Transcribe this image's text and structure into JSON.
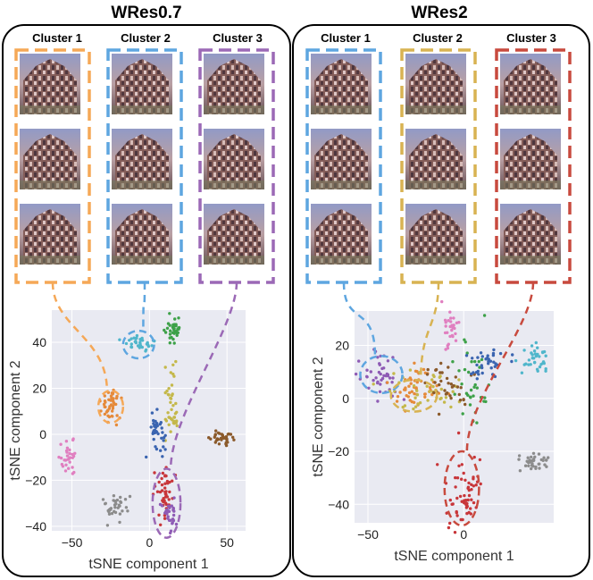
{
  "figure": {
    "colors": {
      "orange": "#f5a857",
      "blue": "#5ea6e0",
      "purple": "#9b69b6",
      "gold": "#d8b352",
      "red": "#c84a3e",
      "plot_bg": "#e9eaf2",
      "grid": "#ffffff",
      "panel_border": "#000000"
    }
  },
  "chart_data": [
    {
      "type": "scatter",
      "title": "WRes0.7",
      "xlabel": "tSNE component 1",
      "ylabel": "tSNE component 2",
      "xlim": [
        -63,
        62
      ],
      "ylim": [
        -42,
        54
      ],
      "xticks": [
        -50,
        0,
        50
      ],
      "yticks": [
        -40,
        -20,
        0,
        20,
        40
      ],
      "xtick_labels": [
        "−50",
        "0",
        "50"
      ],
      "ytick_labels": [
        "−40",
        "−20",
        "0",
        "20",
        "40"
      ],
      "grid": true,
      "thumbnail_labels": [
        "Cluster 1",
        "Cluster 2",
        "Cluster 3"
      ],
      "thumbnail_colors": [
        "orange",
        "blue",
        "purple"
      ],
      "highlighted_clusters": [
        {
          "name": "Cluster 1",
          "color": "orange",
          "center": [
            -25,
            12
          ],
          "radius": [
            8,
            7
          ]
        },
        {
          "name": "Cluster 2",
          "color": "blue",
          "center": [
            -7,
            39
          ],
          "radius": [
            10,
            6
          ]
        },
        {
          "name": "Cluster 3",
          "color": "purple",
          "center": [
            11,
            -30
          ],
          "radius": [
            9,
            15
          ]
        }
      ],
      "clusters": [
        {
          "label": "pink",
          "color": "#e07fc0",
          "center": [
            -52,
            -10
          ],
          "spread": [
            3,
            4
          ],
          "n": 30
        },
        {
          "label": "orange",
          "color": "#e58a3a",
          "center": [
            -25,
            12
          ],
          "spread": [
            3.5,
            3
          ],
          "n": 45
        },
        {
          "label": "cyan",
          "color": "#4fb6cb",
          "center": [
            -7,
            39
          ],
          "spread": [
            5,
            2
          ],
          "n": 35
        },
        {
          "label": "green",
          "color": "#3da148",
          "center": [
            15,
            45
          ],
          "spread": [
            2.5,
            3
          ],
          "n": 40
        },
        {
          "label": "olive",
          "color": "#c4b84a",
          "center": [
            14,
            14
          ],
          "spread": [
            2,
            8
          ],
          "n": 40
        },
        {
          "label": "blue",
          "color": "#3a64b0",
          "center": [
            5,
            0
          ],
          "spread": [
            3,
            5
          ],
          "n": 35
        },
        {
          "label": "brown",
          "color": "#8b5a2b",
          "center": [
            47,
            -2
          ],
          "spread": [
            4,
            2
          ],
          "n": 35
        },
        {
          "label": "gray",
          "color": "#8c8c8c",
          "center": [
            -23,
            -32
          ],
          "spread": [
            4,
            3
          ],
          "n": 35
        },
        {
          "label": "red",
          "color": "#c8363a",
          "center": [
            9,
            -26
          ],
          "spread": [
            3,
            6
          ],
          "n": 45
        },
        {
          "label": "purple",
          "color": "#8e5bb5",
          "center": [
            13,
            -34
          ],
          "spread": [
            3,
            4
          ],
          "n": 30
        }
      ]
    },
    {
      "type": "scatter",
      "title": "WRes2",
      "xlabel": "tSNE component 1",
      "ylabel": "tSNE component 2",
      "xlim": [
        -57,
        47
      ],
      "ylim": [
        -47,
        33
      ],
      "xticks": [
        -50,
        0
      ],
      "yticks": [
        -40,
        -20,
        0,
        20
      ],
      "xtick_labels": [
        "−50",
        "0"
      ],
      "ytick_labels": [
        "−40",
        "−20",
        "0",
        "20"
      ],
      "grid": true,
      "thumbnail_labels": [
        "Cluster 1",
        "Cluster 2",
        "Cluster 3"
      ],
      "thumbnail_colors": [
        "blue",
        "gold",
        "red"
      ],
      "highlighted_clusters": [
        {
          "name": "Cluster 1",
          "color": "blue",
          "center": [
            -43,
            9
          ],
          "radius": [
            11,
            7
          ]
        },
        {
          "name": "Cluster 2",
          "color": "gold",
          "center": [
            -26,
            1
          ],
          "radius": [
            12,
            6
          ]
        },
        {
          "name": "Cluster 3",
          "color": "red",
          "center": [
            -1,
            -34
          ],
          "radius": [
            9,
            14
          ]
        }
      ],
      "clusters": [
        {
          "label": "pink",
          "color": "#e07fc0",
          "center": [
            -7,
            25
          ],
          "spread": [
            2,
            4
          ],
          "n": 30
        },
        {
          "label": "purple",
          "color": "#8e5bb5",
          "center": [
            -44,
            8
          ],
          "spread": [
            5,
            4
          ],
          "n": 45
        },
        {
          "label": "orange",
          "color": "#e58a3a",
          "center": [
            -26,
            3
          ],
          "spread": [
            7,
            4
          ],
          "n": 50
        },
        {
          "label": "olive",
          "color": "#c4b84a",
          "center": [
            -18,
            2
          ],
          "spread": [
            8,
            4
          ],
          "n": 40
        },
        {
          "label": "brown",
          "color": "#8b5a2b",
          "center": [
            -10,
            5
          ],
          "spread": [
            6,
            4
          ],
          "n": 35
        },
        {
          "label": "green",
          "color": "#3da148",
          "center": [
            5,
            4
          ],
          "spread": [
            5,
            8
          ],
          "n": 35
        },
        {
          "label": "blue",
          "color": "#3a64b0",
          "center": [
            10,
            13
          ],
          "spread": [
            7,
            3
          ],
          "n": 35
        },
        {
          "label": "cyan",
          "color": "#4fb6cb",
          "center": [
            37,
            14
          ],
          "spread": [
            3,
            3
          ],
          "n": 35
        },
        {
          "label": "gray",
          "color": "#8c8c8c",
          "center": [
            37,
            -24
          ],
          "spread": [
            4,
            2
          ],
          "n": 35
        },
        {
          "label": "red",
          "color": "#c8363a",
          "center": [
            -1,
            -36
          ],
          "spread": [
            5,
            8
          ],
          "n": 60
        }
      ]
    }
  ]
}
